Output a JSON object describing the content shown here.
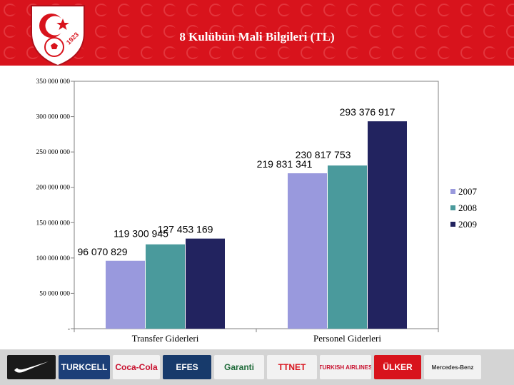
{
  "slide": {
    "title": "8 Kulübün Mali Bilgileri (TL)"
  },
  "logo": {
    "emblem_text": "1923"
  },
  "colors": {
    "banner": "#d8131c",
    "series_2007": "#9999dd",
    "series_2008": "#4a9a9c",
    "series_2009": "#22235f"
  },
  "chart_data": {
    "type": "bar",
    "title": "",
    "xlabel": "",
    "ylabel": "",
    "categories": [
      "Transfer Giderleri",
      "Personel Giderleri"
    ],
    "series": [
      {
        "name": "2007",
        "values": [
          96070829,
          219831341
        ],
        "labels": [
          "96 070 829",
          "219 831 341"
        ]
      },
      {
        "name": "2008",
        "values": [
          119300945,
          230817753
        ],
        "labels": [
          "119 300 945",
          "230 817 753"
        ]
      },
      {
        "name": "2009",
        "values": [
          127453169,
          293376917
        ],
        "labels": [
          "127 453 169",
          "293 376 917"
        ]
      }
    ],
    "ylim": [
      0,
      350000000
    ],
    "y_ticks": [
      0,
      50000000,
      100000000,
      150000000,
      200000000,
      250000000,
      300000000,
      350000000
    ],
    "y_tick_labels": [
      "-",
      "50 000 000",
      "100 000 000",
      "150 000 000",
      "200 000 000",
      "250 000 000",
      "300 000 000",
      "350 000 000"
    ],
    "grid": false,
    "legend_position": "right"
  },
  "sponsors": [
    {
      "name": "Nike",
      "icon": "swoosh-icon",
      "bg": "#1a1a1a",
      "fg": "#ffffff"
    },
    {
      "name": "TURKCELL",
      "bg": "#1c3f78",
      "fg": "#ffffff"
    },
    {
      "name": "Coca-Cola",
      "bg": "#f2f2f2",
      "fg": "#c8102e"
    },
    {
      "name": "EFES",
      "bg": "#173a6b",
      "fg": "#ffffff"
    },
    {
      "name": "Garanti",
      "bg": "#f2f2f2",
      "fg": "#1f6b3a"
    },
    {
      "name": "TTNET",
      "bg": "#f2f2f2",
      "fg": "#d8131c"
    },
    {
      "name": "TURKISH AIRLINES",
      "bg": "#f2f2f2",
      "fg": "#c8102e"
    },
    {
      "name": "ÜLKER",
      "bg": "#d8131c",
      "fg": "#ffffff"
    },
    {
      "name": "Mercedes-Benz",
      "bg": "#f2f2f2",
      "fg": "#333333"
    }
  ]
}
